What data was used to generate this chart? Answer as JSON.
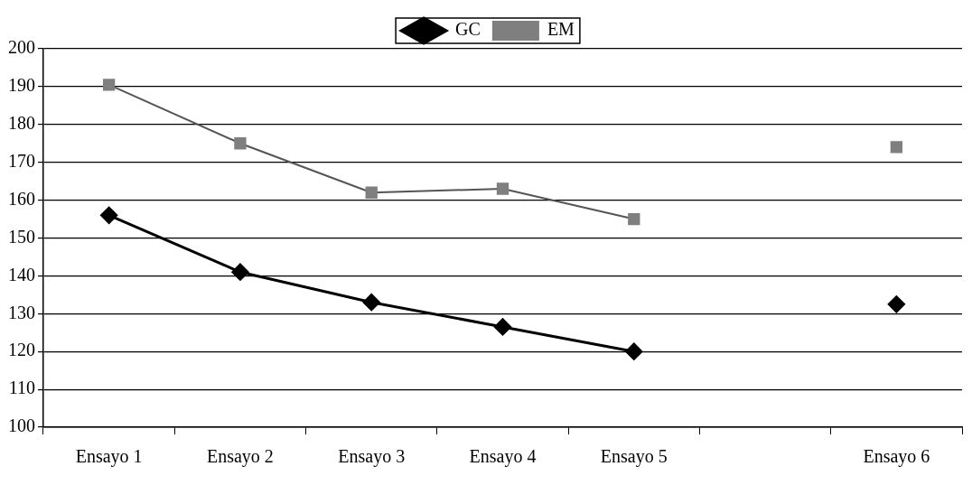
{
  "chart_data": {
    "type": "line",
    "categories": [
      "Ensayo 1",
      "Ensayo 2",
      "Ensayo 3",
      "Ensayo 4",
      "Ensayo 5",
      null,
      "Ensayo 6"
    ],
    "series": [
      {
        "name": "GC",
        "color": "#000000",
        "marker": "diamond",
        "values": [
          156,
          141,
          133,
          126.5,
          120,
          null,
          132.5
        ]
      },
      {
        "name": "EM",
        "color": "#7f7f7f",
        "marker": "square",
        "values": [
          190.5,
          175,
          162,
          163,
          155,
          null,
          174
        ]
      }
    ],
    "ylim": [
      100,
      200
    ],
    "yticks": [
      100,
      110,
      120,
      130,
      140,
      150,
      160,
      170,
      180,
      190,
      200
    ],
    "grid": "y",
    "legend": "top"
  }
}
